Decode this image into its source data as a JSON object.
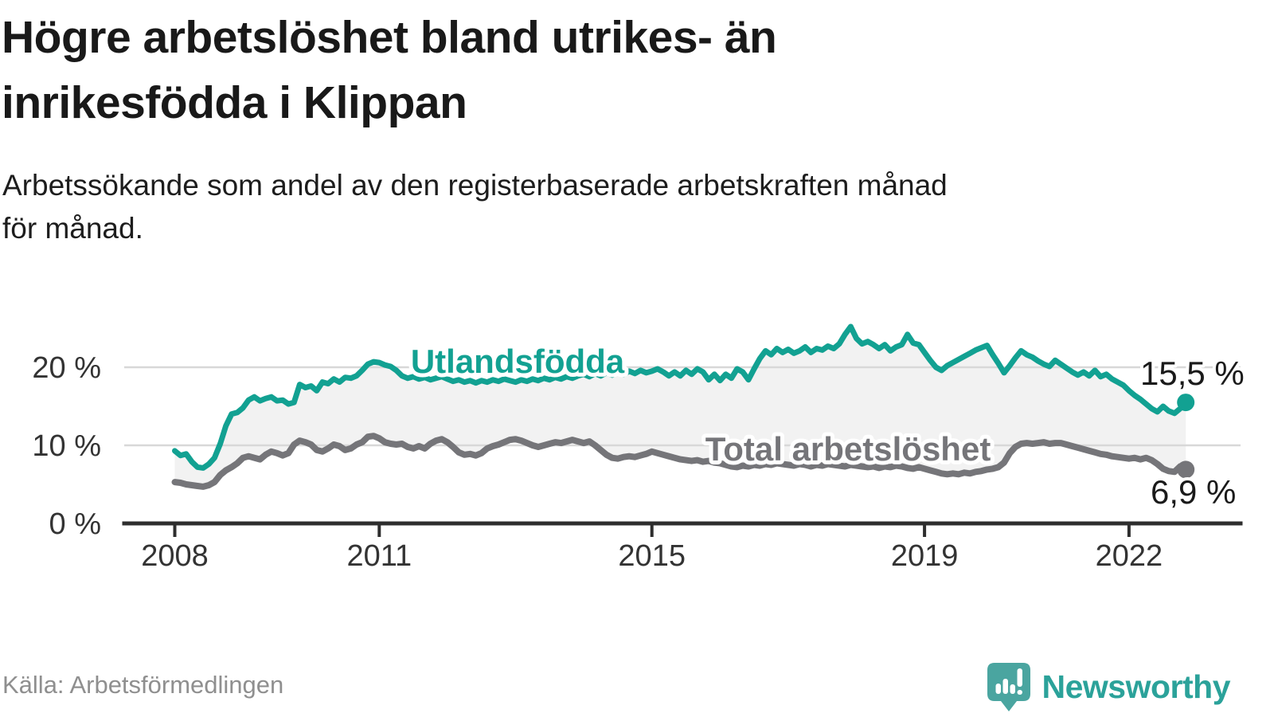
{
  "header": {
    "title_lines": [
      "Högre arbetslöshet bland utrikes- än",
      "inrikesfödda i Klippan"
    ],
    "subtitle_lines": [
      "Arbetssökande som andel av den registerbaserade arbetskraften månad",
      "för månad."
    ]
  },
  "footer": {
    "source": "Källa: Arbetsförmedlingen",
    "brand": "Newsworthy"
  },
  "chart_data": {
    "type": "line",
    "frequency": "monthly",
    "x_start": "2008-01",
    "x_end": "2022-11",
    "x_start_year": 2008,
    "x_ticks": [
      2008,
      2011,
      2015,
      2019,
      2022
    ],
    "y_ticks": [
      {
        "value": 20,
        "label": "20 %"
      },
      {
        "value": 10,
        "label": "10 %"
      },
      {
        "value": 0,
        "label": "0 %"
      }
    ],
    "ylim": [
      0,
      27
    ],
    "grid": "horizontal",
    "area_between_series": true,
    "area_color": "#f2f2f2",
    "axis_color": "#2e2e2e",
    "series": [
      {
        "name": "Utlandsfödda",
        "color": "#12a192",
        "end_value": 15.5,
        "end_label": "15,5 %",
        "values": [
          9.3,
          8.7,
          8.9,
          7.9,
          7.2,
          7.1,
          7.6,
          8.4,
          10.2,
          12.5,
          14.0,
          14.2,
          14.8,
          15.8,
          16.2,
          15.7,
          16.0,
          16.2,
          15.7,
          15.8,
          15.3,
          15.5,
          17.8,
          17.4,
          17.6,
          17.0,
          18.1,
          17.9,
          18.5,
          18.1,
          18.7,
          18.6,
          18.9,
          19.6,
          20.4,
          20.7,
          20.6,
          20.3,
          20.1,
          19.6,
          18.9,
          18.6,
          18.8,
          18.5,
          18.7,
          18.4,
          18.6,
          18.8,
          18.5,
          18.2,
          18.4,
          18.1,
          18.3,
          18.0,
          18.3,
          18.1,
          18.4,
          18.2,
          18.5,
          18.3,
          18.1,
          18.4,
          18.2,
          18.5,
          18.3,
          18.6,
          18.4,
          18.7,
          18.5,
          18.8,
          18.6,
          18.9,
          19.1,
          18.8,
          19.2,
          18.9,
          19.3,
          19.0,
          19.4,
          19.1,
          19.5,
          19.2,
          19.6,
          19.3,
          19.5,
          19.8,
          19.4,
          18.9,
          19.4,
          18.9,
          19.6,
          19.1,
          19.8,
          19.4,
          18.4,
          19.1,
          18.3,
          19.1,
          18.6,
          19.8,
          19.4,
          18.4,
          19.8,
          21.1,
          22.1,
          21.6,
          22.4,
          21.9,
          22.3,
          21.8,
          22.1,
          22.6,
          21.9,
          22.4,
          22.2,
          22.7,
          22.4,
          23.0,
          24.2,
          25.2,
          23.7,
          23.0,
          23.3,
          22.9,
          22.4,
          22.9,
          22.1,
          22.6,
          22.9,
          24.2,
          23.1,
          22.9,
          21.9,
          20.9,
          20.0,
          19.6,
          20.2,
          20.6,
          21.0,
          21.4,
          21.8,
          22.2,
          22.5,
          22.8,
          21.6,
          20.5,
          19.3,
          20.2,
          21.2,
          22.1,
          21.6,
          21.3,
          20.8,
          20.4,
          20.1,
          20.9,
          20.4,
          19.9,
          19.4,
          19.0,
          19.4,
          18.9,
          19.6,
          18.8,
          19.1,
          18.5,
          18.1,
          17.7,
          17.0,
          16.4,
          15.9,
          15.3,
          14.7,
          14.3,
          15.0,
          14.4,
          14.1,
          14.7,
          15.5
        ]
      },
      {
        "name": "Total arbetslöshet",
        "color": "#757579",
        "end_value": 6.9,
        "end_label": "6,9 %",
        "values": [
          5.3,
          5.2,
          5.0,
          4.9,
          4.8,
          4.7,
          4.9,
          5.3,
          6.2,
          6.8,
          7.2,
          7.7,
          8.4,
          8.6,
          8.4,
          8.2,
          8.8,
          9.2,
          9.0,
          8.7,
          9.0,
          10.1,
          10.6,
          10.4,
          10.1,
          9.4,
          9.2,
          9.6,
          10.1,
          9.9,
          9.4,
          9.6,
          10.1,
          10.4,
          11.1,
          11.2,
          10.9,
          10.4,
          10.2,
          10.1,
          10.2,
          9.8,
          9.6,
          9.9,
          9.6,
          10.2,
          10.6,
          10.8,
          10.4,
          9.8,
          9.1,
          8.8,
          8.9,
          8.7,
          9.0,
          9.6,
          9.9,
          10.1,
          10.4,
          10.7,
          10.8,
          10.6,
          10.3,
          10.0,
          9.8,
          10.0,
          10.2,
          10.4,
          10.3,
          10.5,
          10.7,
          10.5,
          10.3,
          10.5,
          10.0,
          9.4,
          8.8,
          8.4,
          8.3,
          8.5,
          8.6,
          8.5,
          8.7,
          8.9,
          9.2,
          9.0,
          8.8,
          8.6,
          8.4,
          8.2,
          8.1,
          8.0,
          8.1,
          7.9,
          8.0,
          7.8,
          7.7,
          7.5,
          7.3,
          7.2,
          7.4,
          7.3,
          7.5,
          7.4,
          7.6,
          7.5,
          7.7,
          7.6,
          7.5,
          7.4,
          7.6,
          7.5,
          7.3,
          7.5,
          7.4,
          7.6,
          7.5,
          7.4,
          7.3,
          7.5,
          7.4,
          7.3,
          7.2,
          7.3,
          7.1,
          7.3,
          7.2,
          7.4,
          7.3,
          7.1,
          7.0,
          7.2,
          7.0,
          6.8,
          6.6,
          6.4,
          6.3,
          6.4,
          6.3,
          6.5,
          6.4,
          6.6,
          6.7,
          6.9,
          7.0,
          7.2,
          7.8,
          9.0,
          9.8,
          10.2,
          10.3,
          10.2,
          10.3,
          10.4,
          10.2,
          10.3,
          10.3,
          10.1,
          9.9,
          9.7,
          9.5,
          9.3,
          9.1,
          8.9,
          8.8,
          8.6,
          8.5,
          8.4,
          8.3,
          8.4,
          8.2,
          8.4,
          8.1,
          7.6,
          7.0,
          6.7,
          6.6,
          7.3,
          6.9
        ]
      }
    ]
  }
}
